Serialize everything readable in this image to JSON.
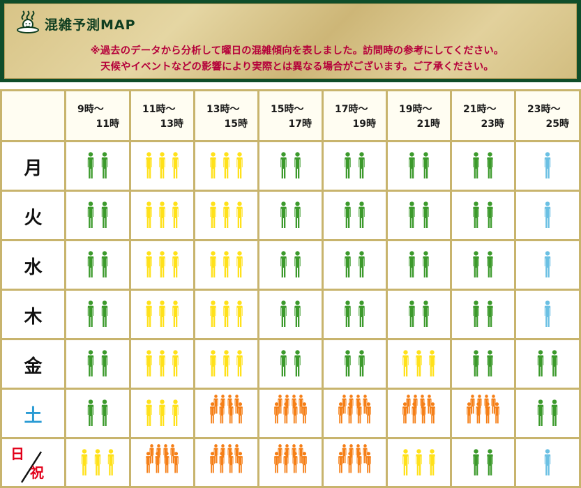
{
  "header": {
    "title": "混雑予測MAP",
    "note_line1": "※過去のデータから分析して曜日の混雑傾向を表しました。訪問時の参考にしてください。",
    "note_line2": "天候やイベントなどの影響により実際とは異なる場合がございます。ご了承ください。"
  },
  "colors": {
    "level1": "#6bc0e3",
    "level2": "#3c9a2c",
    "level3": "#ffe11a",
    "level4": "#f57f17"
  },
  "time_slots": [
    {
      "from": "9時〜",
      "to": "11時"
    },
    {
      "from": "11時〜",
      "to": "13時"
    },
    {
      "from": "13時〜",
      "to": "15時"
    },
    {
      "from": "15時〜",
      "to": "17時"
    },
    {
      "from": "17時〜",
      "to": "19時"
    },
    {
      "from": "19時〜",
      "to": "21時"
    },
    {
      "from": "21時〜",
      "to": "23時"
    },
    {
      "from": "23時〜",
      "to": "25時"
    }
  ],
  "days": [
    {
      "label": "月",
      "levels": [
        2,
        3,
        3,
        2,
        2,
        2,
        2,
        1
      ]
    },
    {
      "label": "火",
      "levels": [
        2,
        3,
        3,
        2,
        2,
        2,
        2,
        1
      ]
    },
    {
      "label": "水",
      "levels": [
        2,
        3,
        3,
        2,
        2,
        2,
        2,
        1
      ]
    },
    {
      "label": "木",
      "levels": [
        2,
        3,
        3,
        2,
        2,
        2,
        2,
        1
      ]
    },
    {
      "label": "金",
      "levels": [
        2,
        3,
        3,
        2,
        2,
        3,
        2,
        2
      ]
    },
    {
      "label": "土",
      "levels": [
        2,
        3,
        4,
        4,
        4,
        4,
        4,
        2
      ]
    },
    {
      "label": "日",
      "label2": "祝",
      "levels": [
        3,
        4,
        4,
        4,
        4,
        3,
        2,
        1
      ]
    }
  ]
}
